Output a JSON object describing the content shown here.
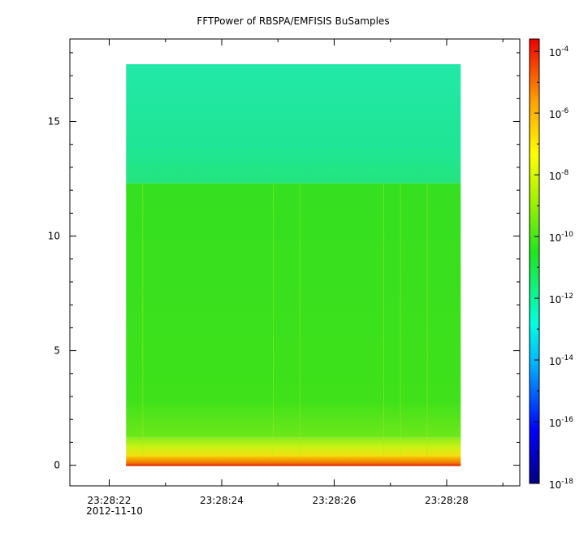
{
  "chart_data": {
    "type": "heatmap",
    "title": "FFTPower of RBSPA/EMFISIS  BuSamples",
    "x_ticks": [
      {
        "t": 22,
        "label": "23:28:22"
      },
      {
        "t": 24,
        "label": "23:28:24"
      },
      {
        "t": 26,
        "label": "23:28:26"
      },
      {
        "t": 28,
        "label": "23:28:28"
      }
    ],
    "x_date_label": "2012-11-10",
    "xlim_seconds": [
      21.3,
      29.3
    ],
    "data_x_range_seconds": [
      22.3,
      28.25
    ],
    "y_ticks": [
      0,
      5,
      10,
      15
    ],
    "ylim": [
      -0.9,
      18.6
    ],
    "data_y_range": [
      0,
      17.5
    ],
    "colorbar": {
      "scale": "log",
      "range_exponents": [
        -18,
        -3.6
      ],
      "tick_base": "10",
      "tick_exponents": [
        "-4",
        "-6",
        "-8",
        "-10",
        "-12",
        "-14",
        "-16",
        "-18"
      ]
    },
    "bands": [
      {
        "y_range": [
          12.3,
          17.5
        ],
        "level_exponent": -13.1,
        "description_color": "#1fe69a"
      },
      {
        "y_range": [
          1.2,
          12.3
        ],
        "level_exponent": -10.3,
        "description_color": "#3ee11a"
      },
      {
        "y_range": [
          0.4,
          1.2
        ],
        "level_exponent": -8.7,
        "description_color": "#b6f01a"
      },
      {
        "y_range": [
          0,
          0.4
        ],
        "level_exponent": -7.3,
        "description_color": "#f0c800"
      }
    ],
    "grid": false
  }
}
